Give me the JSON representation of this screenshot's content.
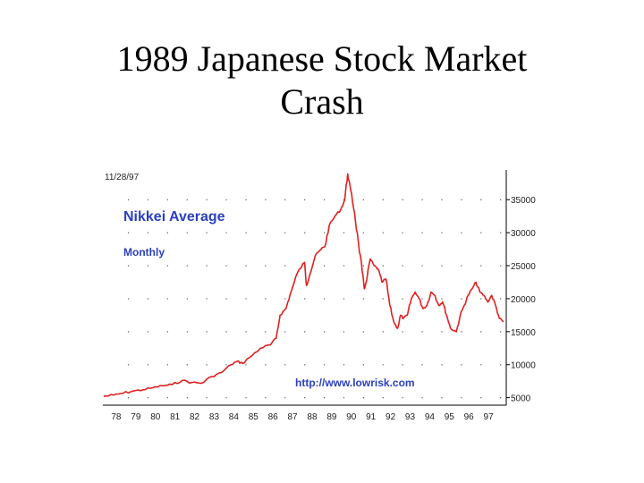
{
  "slide": {
    "title_line1": "1989 Japanese Stock Market",
    "title_line2": "Crash"
  },
  "chart_data": {
    "type": "line",
    "date_stamp": "11/28/97",
    "title": "Nikkei Average",
    "subtitle": "Monthly",
    "source": "http://www.lowrisk.com",
    "x_tick_labels": [
      "78",
      "79",
      "80",
      "81",
      "82",
      "83",
      "84",
      "85",
      "86",
      "87",
      "88",
      "89",
      "90",
      "91",
      "92",
      "93",
      "94",
      "95",
      "96",
      "97"
    ],
    "y_tick_labels": [
      "5000",
      "10000",
      "15000",
      "20000",
      "25000",
      "30000",
      "35000"
    ],
    "y_ticks": [
      5000,
      10000,
      15000,
      20000,
      25000,
      30000,
      35000
    ],
    "ylim": [
      4000,
      39500
    ],
    "xlim": [
      1977.5,
      1998.0
    ],
    "grid": true,
    "line_color": "#e02020",
    "series": [
      {
        "x": [
          1977.5,
          1978.0,
          1978.5,
          1979.0,
          1979.5,
          1980.0,
          1980.5,
          1981.0,
          1981.5,
          1982.0,
          1982.5,
          1983.0,
          1983.5,
          1984.0,
          1984.3,
          1984.6,
          1984.9,
          1985.5,
          1986.0,
          1986.3,
          1986.5,
          1986.8,
          1987.0,
          1987.4,
          1987.75,
          1987.85,
          1988.0,
          1988.3,
          1988.6,
          1988.8,
          1989.0,
          1989.3,
          1989.6,
          1989.8,
          1989.95,
          1990.1,
          1990.3,
          1990.5,
          1990.7,
          1990.8,
          1990.9,
          1991.1,
          1991.3,
          1991.5,
          1991.7,
          1991.9,
          1992.1,
          1992.3,
          1992.5,
          1992.65,
          1992.8,
          1993.0,
          1993.2,
          1993.4,
          1993.6,
          1993.8,
          1994.0,
          1994.2,
          1994.4,
          1994.6,
          1994.8,
          1995.0,
          1995.2,
          1995.5,
          1995.7,
          1995.9,
          1996.1,
          1996.3,
          1996.5,
          1996.7,
          1996.9,
          1997.1,
          1997.3,
          1997.5,
          1997.7,
          1997.9
        ],
        "y": [
          5200,
          5400,
          5700,
          6000,
          6200,
          6500,
          6800,
          7000,
          7600,
          7300,
          7200,
          8200,
          8800,
          10000,
          10500,
          10200,
          11000,
          12500,
          13000,
          14000,
          17500,
          18500,
          20500,
          24000,
          25500,
          22000,
          23500,
          26500,
          27500,
          28000,
          31000,
          32500,
          33500,
          35000,
          38900,
          36500,
          33000,
          28500,
          24000,
          21500,
          22500,
          26000,
          25000,
          24500,
          22500,
          23000,
          19000,
          16500,
          15500,
          17500,
          17000,
          17500,
          20000,
          21000,
          20000,
          18500,
          19000,
          21000,
          20500,
          19000,
          19500,
          17500,
          15500,
          15000,
          17500,
          19000,
          20500,
          21500,
          22500,
          21000,
          20500,
          19500,
          20500,
          19000,
          17000,
          16500
        ]
      }
    ]
  }
}
